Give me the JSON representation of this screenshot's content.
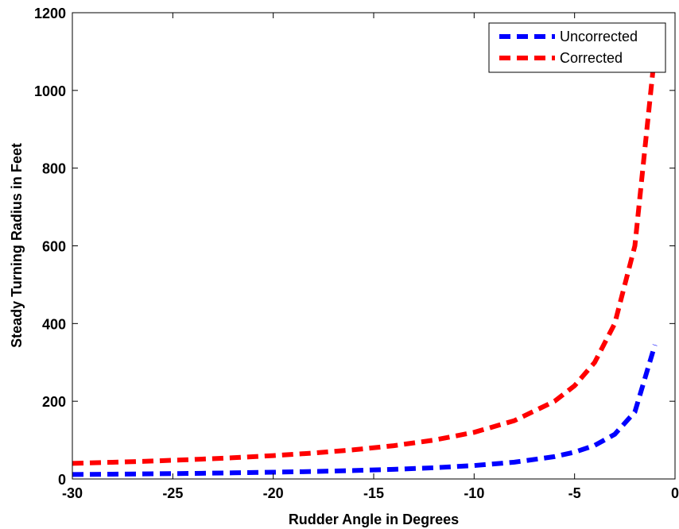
{
  "chart_data": {
    "type": "line",
    "title": "",
    "xlabel": "Rudder Angle in Degrees",
    "ylabel": "Steady Turning Radius in Feet",
    "xlim": [
      -30,
      0
    ],
    "ylim": [
      0,
      1200
    ],
    "xticks": [
      "-30",
      "-25",
      "-20",
      "-15",
      "-10",
      "-5",
      "0"
    ],
    "yticks": [
      "0",
      "200",
      "400",
      "600",
      "800",
      "1000",
      "1200"
    ],
    "grid": false,
    "legend_position": "top-right",
    "series": [
      {
        "name": "Uncorrected",
        "color": "#0000ff",
        "style": "dashed",
        "x": [
          -30,
          -28,
          -26,
          -24,
          -22,
          -20,
          -18,
          -16,
          -14,
          -12,
          -10,
          -8,
          -6,
          -5,
          -4,
          -3,
          -2,
          -1
        ],
        "y": [
          11.5,
          12.3,
          13.3,
          14.4,
          15.7,
          17.3,
          19.2,
          21.6,
          24.7,
          28.8,
          34.5,
          43.1,
          57.5,
          69,
          86.3,
          115,
          172.5,
          345
        ]
      },
      {
        "name": "Corrected",
        "color": "#ff0000",
        "style": "dashed",
        "x": [
          -30,
          -28,
          -26,
          -24,
          -22,
          -20,
          -18,
          -16,
          -14,
          -12,
          -10,
          -8,
          -6,
          -5,
          -4,
          -3,
          -2,
          -1
        ],
        "y": [
          40,
          42.9,
          46.2,
          50,
          54.5,
          60,
          66.7,
          75,
          85.7,
          100,
          120,
          150,
          200,
          240,
          300,
          400,
          600,
          1100
        ]
      }
    ]
  }
}
